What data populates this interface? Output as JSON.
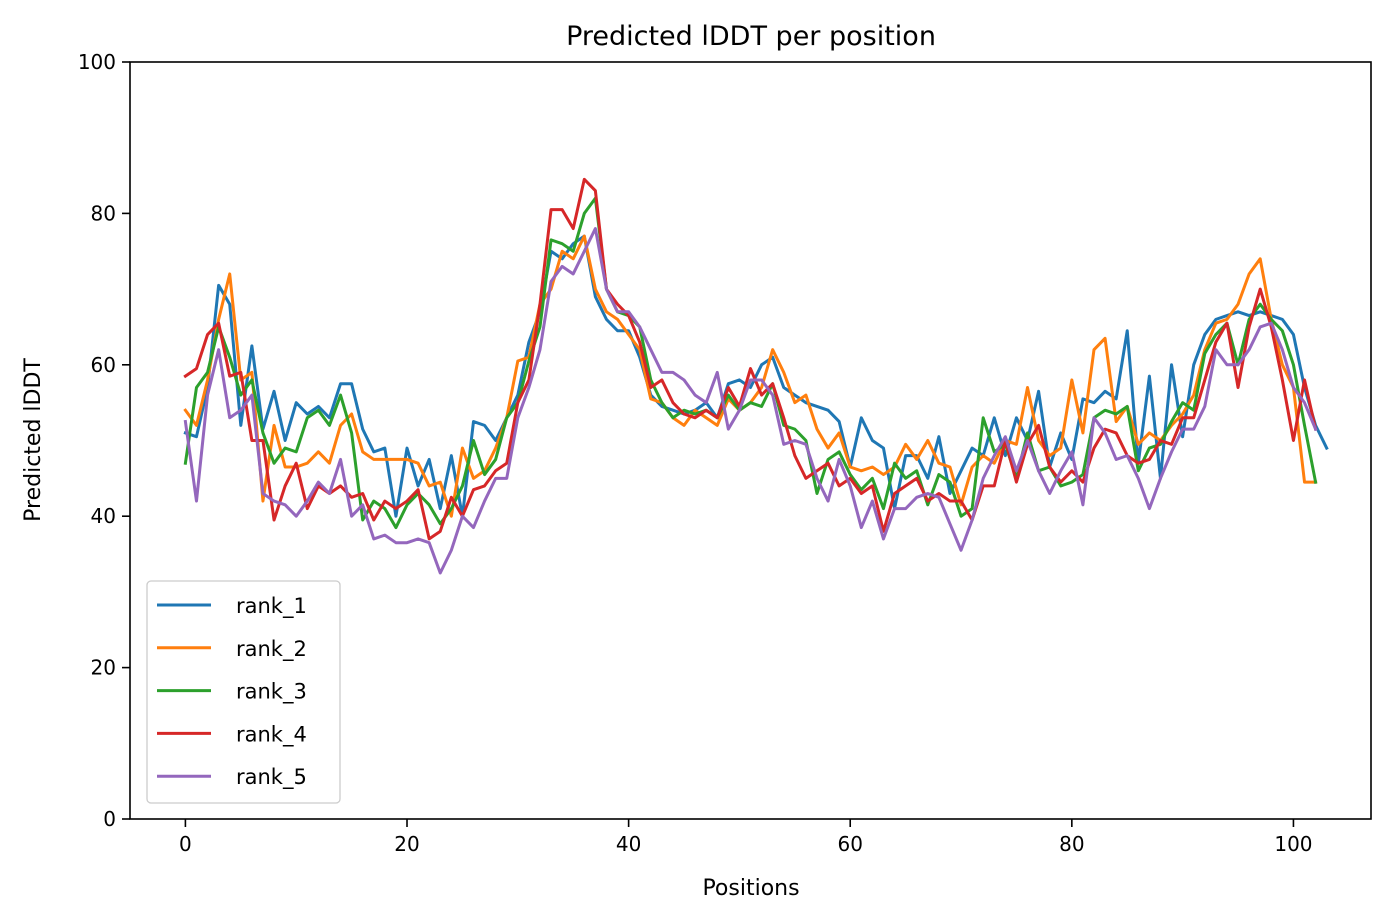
{
  "chart_data": {
    "type": "line",
    "title": "Predicted lDDT per position",
    "xlabel": "Positions",
    "ylabel": "Predicted lDDT",
    "xlim": [
      -5,
      107
    ],
    "ylim": [
      0,
      100
    ],
    "xticks": [
      "0",
      "20",
      "40",
      "60",
      "80",
      "100"
    ],
    "yticks": [
      "0",
      "20",
      "40",
      "60",
      "80",
      "100"
    ],
    "grid": false,
    "legend_position": "lower-left",
    "series": [
      {
        "name": "rank_1",
        "color": "#1f77b4",
        "values": [
          51,
          50.5,
          57,
          70.5,
          68,
          52,
          62.5,
          51.5,
          56.5,
          50,
          55,
          53.5,
          54.5,
          53,
          57.5,
          57.5,
          51.5,
          48.5,
          49,
          40,
          49,
          44,
          47.5,
          41,
          48,
          40,
          52.5,
          52,
          50,
          53,
          56,
          63,
          67,
          75,
          74,
          76,
          77,
          69,
          66,
          64.5,
          64.5,
          61,
          56,
          54.5,
          54,
          53.5,
          54,
          55,
          53,
          57.5,
          58,
          57,
          60,
          61,
          57,
          56,
          55,
          54.5,
          54,
          52.5,
          46.5,
          53,
          50,
          49,
          41,
          48,
          48,
          45,
          50.5,
          43,
          46,
          49,
          48,
          53,
          48,
          53,
          50,
          56.5,
          46.5,
          51,
          47.5,
          55.5,
          55,
          56.5,
          55.5,
          64.5,
          47,
          58.5,
          45,
          60,
          50.5,
          60,
          64,
          66,
          66.5,
          67,
          66.5,
          67,
          66.5,
          66,
          64,
          57,
          52,
          49
        ]
      },
      {
        "name": "rank_2",
        "color": "#ff7f0e",
        "values": [
          54,
          52,
          58,
          66,
          72,
          58,
          59,
          42,
          52,
          46.5,
          46.5,
          47,
          48.5,
          47,
          52,
          53.5,
          48.5,
          47.5,
          47.5,
          47.5,
          47.5,
          47,
          44,
          44.5,
          40,
          49,
          45,
          46,
          49,
          53,
          60.5,
          61,
          68,
          70,
          75,
          74,
          77,
          70,
          67,
          66,
          64,
          62,
          55.5,
          55,
          53,
          52,
          54,
          53,
          52,
          55.5,
          54,
          55,
          57,
          62,
          59,
          55,
          56,
          51.5,
          49,
          51,
          46.5,
          46,
          46.5,
          45.5,
          46.5,
          49.5,
          47.5,
          50,
          47,
          46.5,
          41.5,
          46.5,
          48,
          47,
          50,
          49.5,
          57,
          50,
          48,
          49,
          58,
          51,
          62,
          63.5,
          52.5,
          54.5,
          49.5,
          51,
          50,
          52,
          53.5,
          56,
          62,
          65.5,
          66,
          68,
          72,
          74,
          66,
          60,
          57,
          44.5,
          44.5
        ]
      },
      {
        "name": "rank_3",
        "color": "#2ca02c",
        "values": [
          47,
          57,
          59,
          65,
          61,
          56,
          58,
          51,
          47,
          49,
          48.5,
          53,
          54,
          52,
          56,
          51,
          39.5,
          42,
          41,
          38.5,
          41.5,
          43,
          41.5,
          39,
          41,
          44,
          50,
          45.5,
          47.5,
          53,
          55,
          60.5,
          65,
          76.5,
          76,
          75,
          80,
          82,
          70,
          67,
          66.5,
          65,
          58,
          55,
          53,
          54,
          53.5,
          54,
          53,
          56,
          54,
          55,
          54.5,
          57.5,
          52,
          51.5,
          50,
          43,
          47.5,
          48.5,
          45.5,
          43.5,
          45,
          41,
          47,
          45,
          46,
          41.5,
          45.5,
          44.5,
          40,
          41,
          53,
          48.5,
          49.5,
          45,
          51,
          46,
          46.5,
          44,
          44.5,
          45.5,
          53,
          54,
          53.5,
          54.5,
          46,
          49,
          49.5,
          52.5,
          55,
          54,
          61.5,
          64,
          65.5,
          60,
          66,
          68,
          66,
          64.5,
          60,
          52,
          44.5
        ]
      },
      {
        "name": "rank_4",
        "color": "#d62728",
        "values": [
          58.5,
          59.5,
          64,
          65.5,
          58.5,
          59,
          50,
          50,
          39.5,
          44,
          47,
          41,
          44,
          43,
          44,
          42.5,
          43,
          39.5,
          42,
          41,
          42,
          43.5,
          37,
          38,
          42.5,
          40,
          43.5,
          44,
          46,
          47,
          55,
          58,
          68,
          80.5,
          80.5,
          78,
          84.5,
          83,
          70,
          68,
          66.5,
          63,
          57,
          58,
          55,
          53.5,
          53,
          54,
          53,
          57,
          54.5,
          59.5,
          56,
          57.5,
          53,
          48,
          45,
          46,
          47,
          44,
          45,
          43,
          44,
          38,
          43,
          44,
          45,
          42,
          43,
          42,
          42,
          39.5,
          44,
          44,
          50,
          44.5,
          49.5,
          52,
          46.5,
          44.5,
          46,
          44.5,
          49,
          51.5,
          51,
          48,
          47,
          47.5,
          50,
          49.5,
          53,
          53,
          58,
          63,
          65.5,
          57,
          65,
          70,
          65,
          58,
          50,
          58,
          51.5
        ]
      },
      {
        "name": "rank_5",
        "color": "#9467bd",
        "values": [
          52.5,
          42,
          56,
          62,
          53,
          54,
          56,
          43,
          42,
          41.5,
          40,
          42,
          44.5,
          43,
          47.5,
          40,
          41.5,
          37,
          37.5,
          36.5,
          36.5,
          37,
          36.5,
          32.5,
          35.5,
          40,
          38.5,
          42,
          45,
          45,
          53,
          57,
          62,
          71,
          73,
          72,
          75,
          78,
          70,
          67,
          67,
          65,
          62,
          59,
          59,
          58,
          56,
          55,
          59,
          51.5,
          54,
          58,
          58,
          56,
          49.5,
          50,
          49.5,
          45,
          42,
          47.5,
          44,
          38.5,
          42,
          37,
          41,
          41,
          42.5,
          43,
          42.5,
          39,
          35.5,
          39.5,
          45,
          48,
          50.5,
          46,
          50,
          46,
          43,
          46,
          48.5,
          41.5,
          53,
          51,
          47.5,
          48,
          45,
          41,
          45,
          48.5,
          51.5,
          51.5,
          54.5,
          62,
          60,
          60,
          62,
          65,
          65.5,
          62,
          57,
          55,
          51.5
        ]
      }
    ]
  }
}
